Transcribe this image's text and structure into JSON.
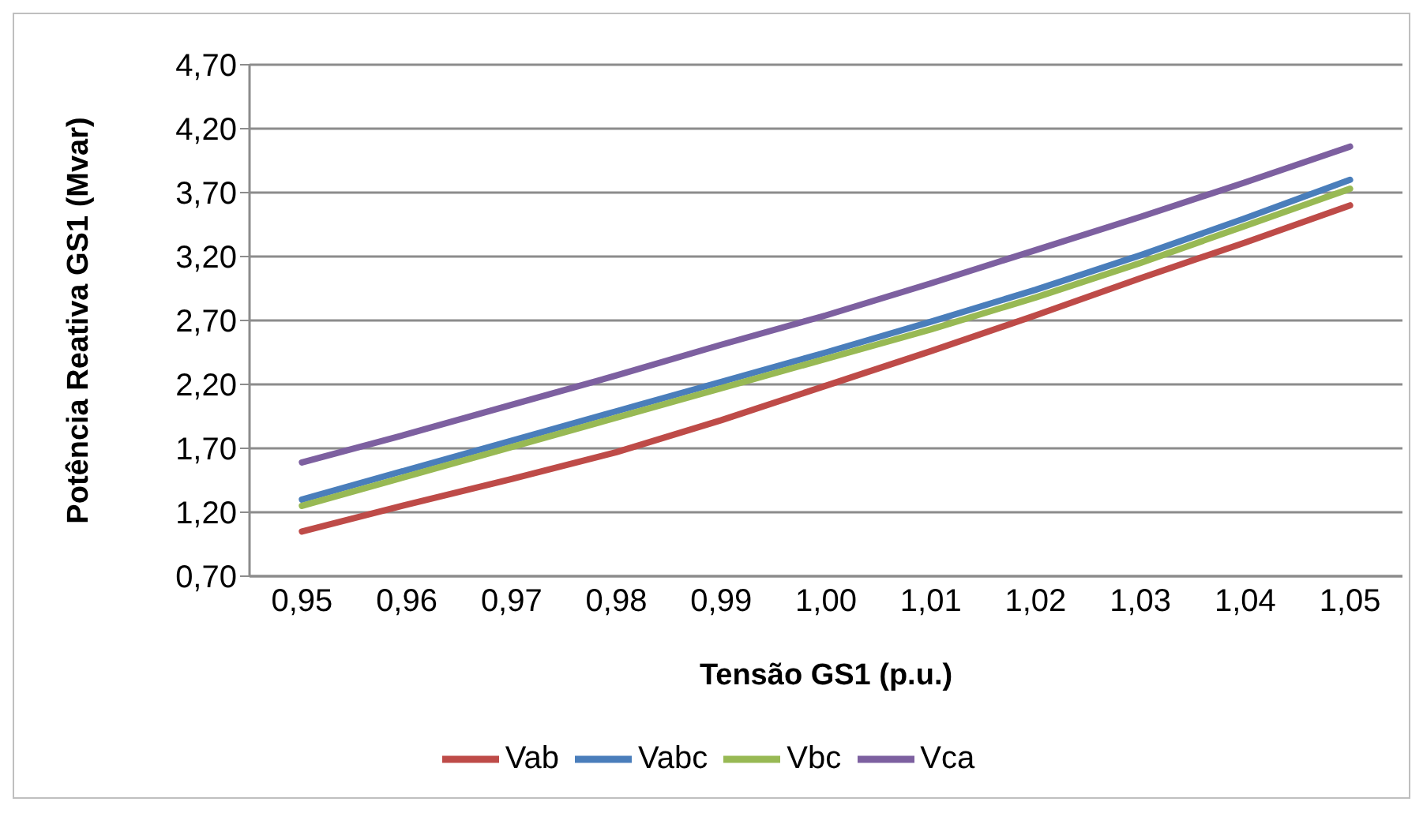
{
  "chart_data": {
    "type": "line",
    "xlabel": "Tensão GS1 (p.u.)",
    "ylabel": "Potência Reativa GS1 (Mvar)",
    "categories": [
      "0,95",
      "0,96",
      "0,97",
      "0,98",
      "0,99",
      "1,00",
      "1,01",
      "1,02",
      "1,03",
      "1,04",
      "1,05"
    ],
    "series": [
      {
        "name": "Vabc",
        "color": "#4a7ebb",
        "values": [
          1.3,
          1.53,
          1.76,
          1.99,
          2.22,
          2.45,
          2.69,
          2.94,
          3.21,
          3.5,
          3.8
        ]
      },
      {
        "name": "Vab",
        "color": "#be4b48",
        "values": [
          1.05,
          1.26,
          1.46,
          1.67,
          1.92,
          2.19,
          2.46,
          2.74,
          3.03,
          3.31,
          3.6
        ]
      },
      {
        "name": "Vbc",
        "color": "#98b954",
        "values": [
          1.25,
          1.48,
          1.71,
          1.94,
          2.17,
          2.4,
          2.63,
          2.88,
          3.15,
          3.44,
          3.73
        ]
      },
      {
        "name": "Vca",
        "color": "#7d60a0",
        "values": [
          1.59,
          1.81,
          2.04,
          2.27,
          2.51,
          2.74,
          2.99,
          3.25,
          3.51,
          3.78,
          4.06
        ]
      }
    ],
    "ylim": [
      0.7,
      4.7
    ],
    "yticks": [
      {
        "value": 0.7,
        "label": "0,70"
      },
      {
        "value": 1.2,
        "label": "1,20"
      },
      {
        "value": 1.7,
        "label": "1,70"
      },
      {
        "value": 2.2,
        "label": "2,20"
      },
      {
        "value": 2.7,
        "label": "2,70"
      },
      {
        "value": 3.2,
        "label": "3,20"
      },
      {
        "value": 3.7,
        "label": "3,70"
      },
      {
        "value": 4.2,
        "label": "4,20"
      },
      {
        "value": 4.7,
        "label": "4,70"
      }
    ],
    "grid": "y",
    "legend": "bottom",
    "marker": "none",
    "line_style": "solid"
  }
}
